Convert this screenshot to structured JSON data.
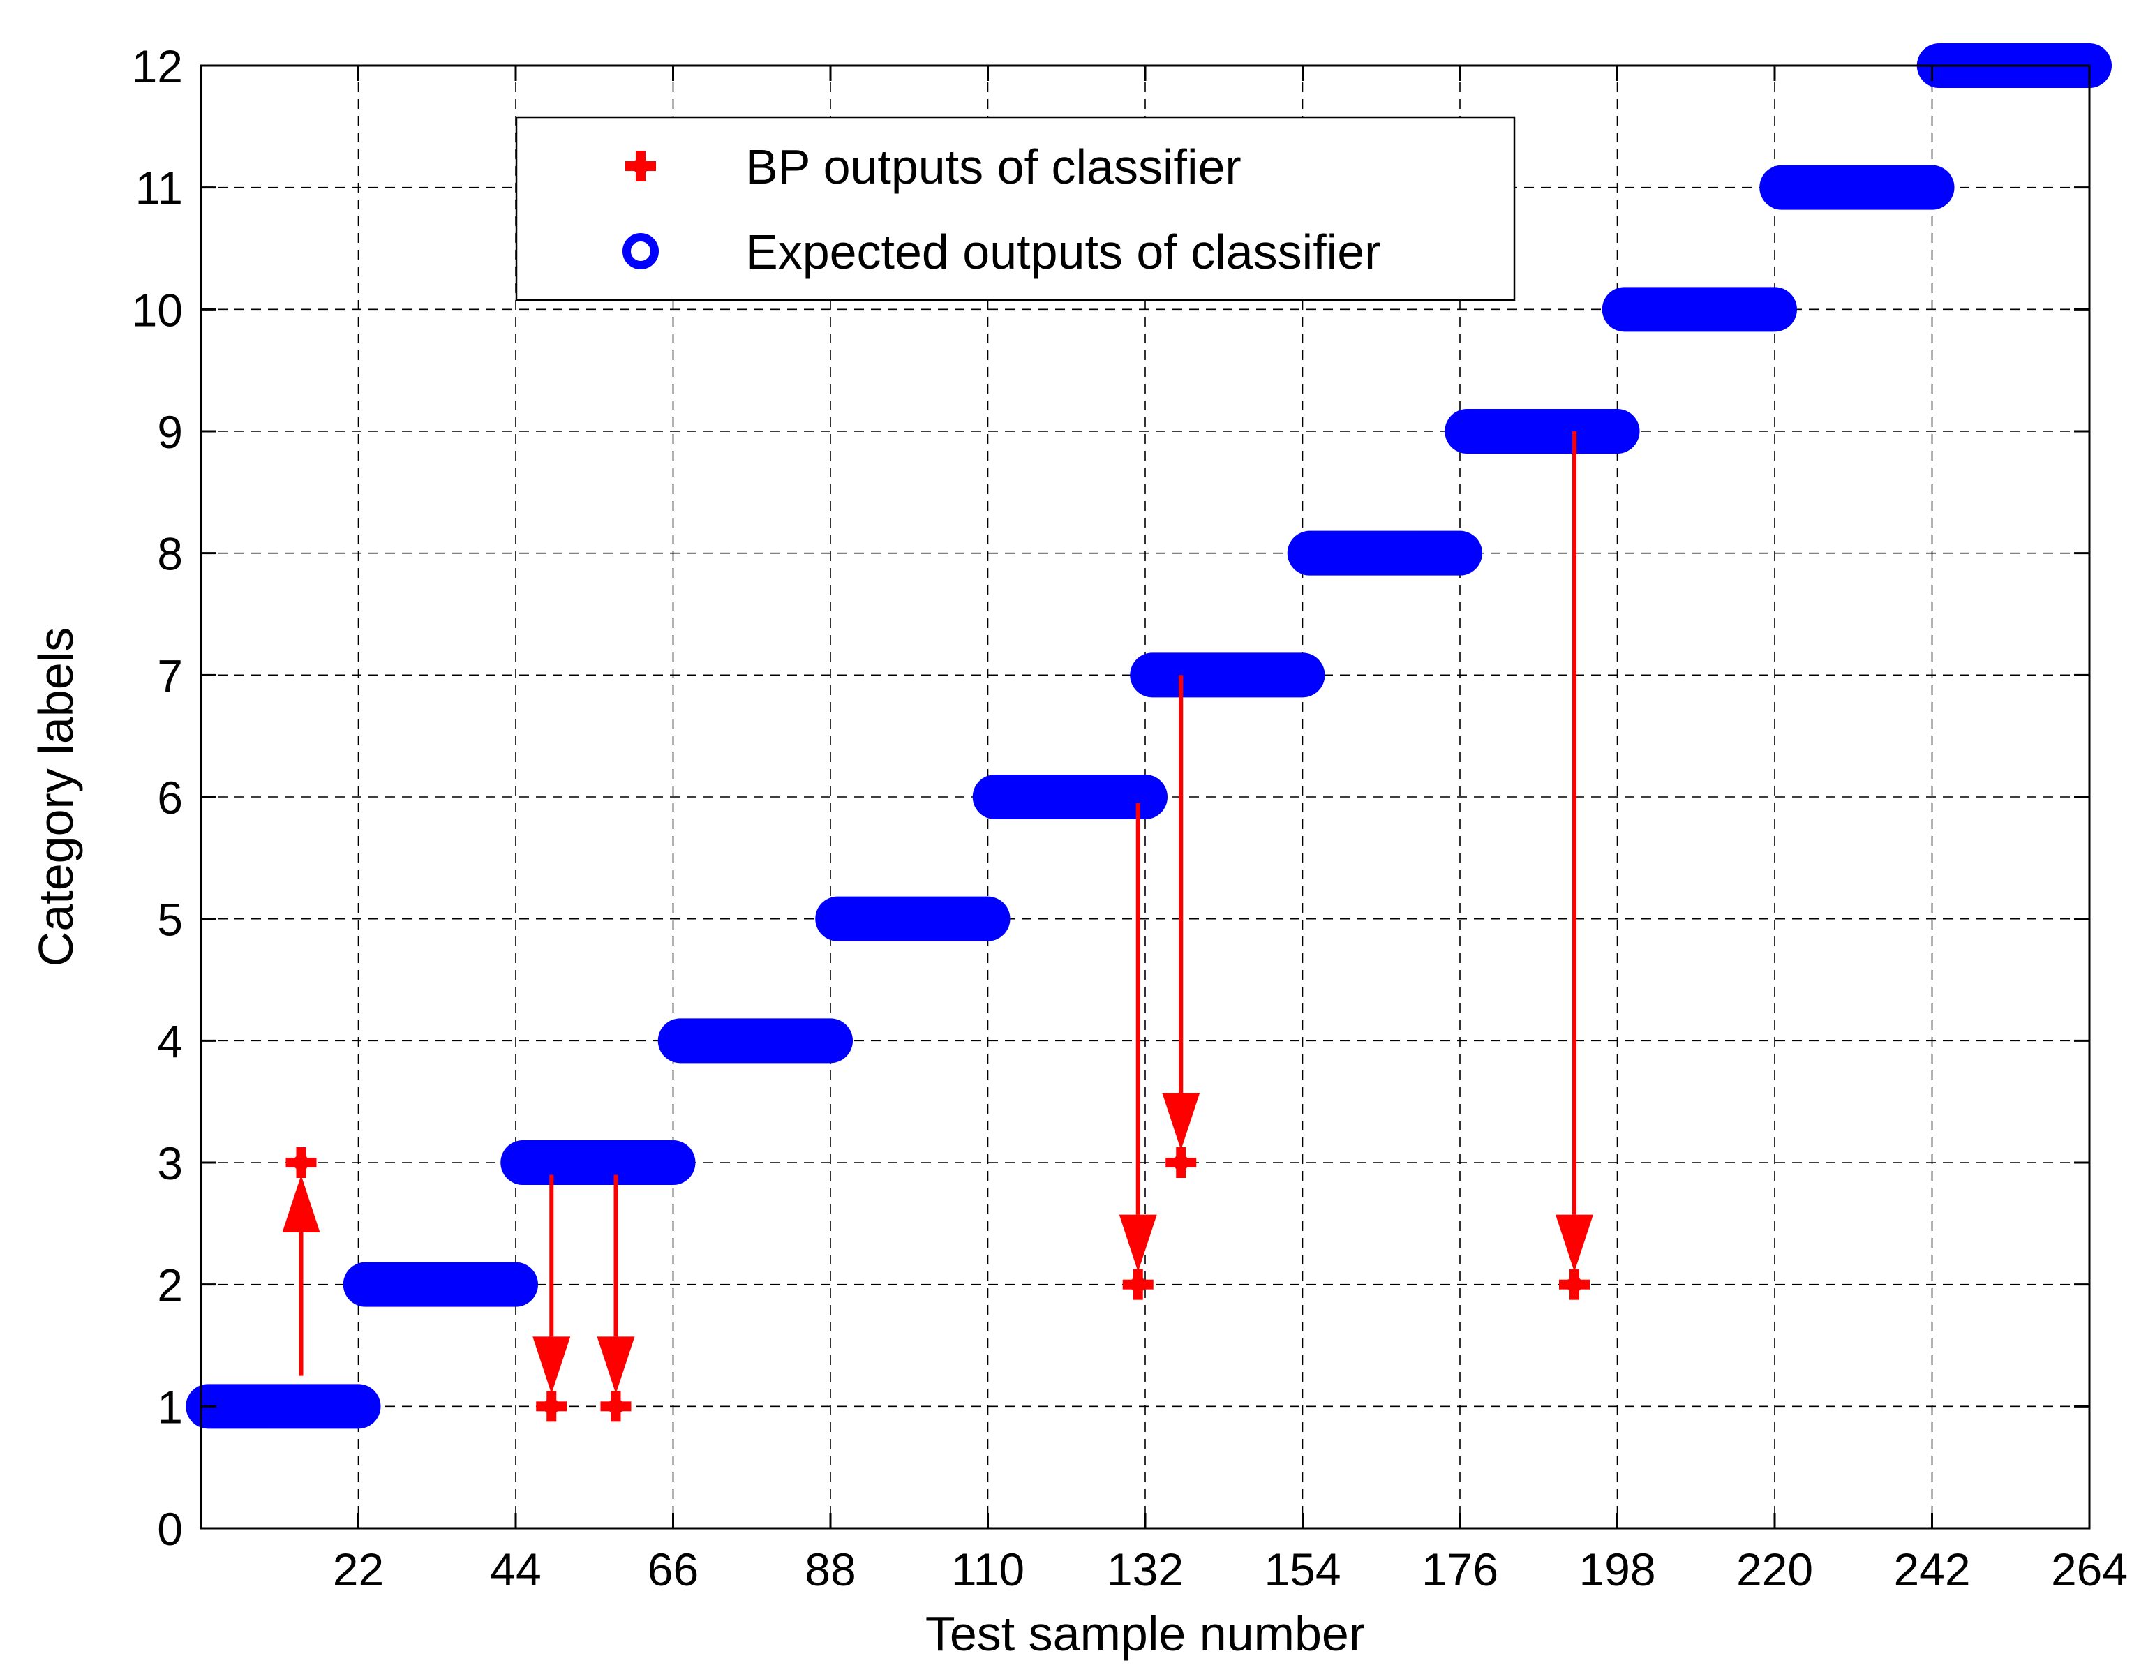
{
  "chart_data": {
    "type": "scatter",
    "xlabel": "Test sample number",
    "ylabel": "Category labels",
    "xlim": [
      0,
      264
    ],
    "ylim": [
      0,
      12
    ],
    "xticks": [
      22,
      44,
      66,
      88,
      110,
      132,
      154,
      176,
      198,
      220,
      242,
      264
    ],
    "yticks": [
      0,
      1,
      2,
      3,
      4,
      5,
      6,
      7,
      8,
      9,
      10,
      11,
      12
    ],
    "grid": true,
    "legend_position": "top",
    "series": [
      {
        "name": "BP outputs of classifier",
        "color": "#ff0000",
        "marker": "diamond",
        "points": [
          {
            "x": 14,
            "y": 3
          },
          {
            "x": 49,
            "y": 1
          },
          {
            "x": 58,
            "y": 1
          },
          {
            "x": 131,
            "y": 2
          },
          {
            "x": 137,
            "y": 3
          },
          {
            "x": 192,
            "y": 2
          }
        ]
      },
      {
        "name": "Expected outputs of classifier",
        "color": "#0000ff",
        "marker": "circle",
        "segments": [
          {
            "x_start": 1,
            "x_end": 22,
            "y": 1
          },
          {
            "x_start": 23,
            "x_end": 44,
            "y": 2
          },
          {
            "x_start": 45,
            "x_end": 66,
            "y": 3
          },
          {
            "x_start": 67,
            "x_end": 88,
            "y": 4
          },
          {
            "x_start": 89,
            "x_end": 110,
            "y": 5
          },
          {
            "x_start": 111,
            "x_end": 132,
            "y": 6
          },
          {
            "x_start": 133,
            "x_end": 154,
            "y": 7
          },
          {
            "x_start": 155,
            "x_end": 176,
            "y": 8
          },
          {
            "x_start": 177,
            "x_end": 198,
            "y": 9
          },
          {
            "x_start": 199,
            "x_end": 220,
            "y": 10
          },
          {
            "x_start": 221,
            "x_end": 242,
            "y": 11
          },
          {
            "x_start": 243,
            "x_end": 264,
            "y": 12
          }
        ]
      }
    ],
    "annotations": [
      {
        "type": "arrow",
        "x": 14,
        "from_y": 1.25,
        "to_y": 3
      },
      {
        "type": "arrow",
        "x": 49,
        "from_y": 2.9,
        "to_y": 1
      },
      {
        "type": "arrow",
        "x": 58,
        "from_y": 2.9,
        "to_y": 1
      },
      {
        "type": "arrow",
        "x": 131,
        "from_y": 5.95,
        "to_y": 2
      },
      {
        "type": "arrow",
        "x": 137,
        "from_y": 7,
        "to_y": 3
      },
      {
        "type": "arrow",
        "x": 192,
        "from_y": 9,
        "to_y": 2
      }
    ]
  }
}
